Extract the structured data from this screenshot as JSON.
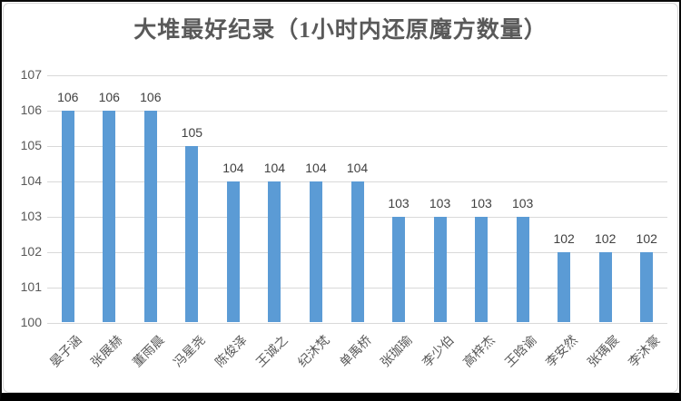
{
  "window": {
    "background": "#ffffff",
    "frame_color": "#000000"
  },
  "chart_data": {
    "type": "bar",
    "title": "大堆最好纪录（1小时内还原魔方数量）",
    "categories": [
      "晏子涵",
      "张展赫",
      "董雨晨",
      "冯星尧",
      "陈俊泽",
      "王诚之",
      "纪沐梵",
      "单禹桥",
      "张珈瑜",
      "李少伯",
      "高梓杰",
      "王晗谕",
      "李安然",
      "张瑀宸",
      "李沐豪"
    ],
    "values": [
      106,
      106,
      106,
      105,
      104,
      104,
      104,
      104,
      103,
      103,
      103,
      103,
      102,
      102,
      102
    ],
    "data_labels": [
      "106",
      "106",
      "106",
      "105",
      "104",
      "104",
      "104",
      "104",
      "103",
      "103",
      "103",
      "103",
      "102",
      "102",
      "102"
    ],
    "xlabel": "",
    "ylabel": "",
    "ylim": [
      100,
      107
    ],
    "yticks": [
      100,
      101,
      102,
      103,
      104,
      105,
      106,
      107
    ],
    "grid": true,
    "legend": "none",
    "data_labels_on": true,
    "category_rotation_deg": 45,
    "bar_color": "#5b9bd5",
    "gridline_color": "#d9d9d9",
    "tick_text_color": "#595959",
    "value_label_color": "#404040",
    "title_color": "#595959"
  }
}
